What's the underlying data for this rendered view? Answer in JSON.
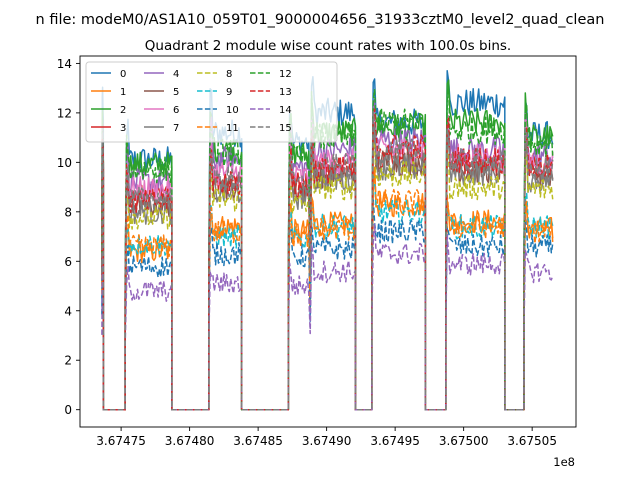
{
  "figure": {
    "suptitle": "n file: modeM0/AS1A10_059T01_9000004656_31933cztM0_level2_quad_clean",
    "title": "Quadrant 2 module wise count rates with 100.0s bins.",
    "offset_label": "1e8"
  },
  "chart_data": {
    "type": "line",
    "title": "Quadrant 2 module wise count rates with 100.0s bins.",
    "xlabel": "",
    "ylabel": "",
    "x_ticks": [
      "3.67475",
      "3.67480",
      "3.67485",
      "3.67490",
      "3.67495",
      "3.67500",
      "3.67505"
    ],
    "x_tick_values": [
      367475000,
      367480000,
      367485000,
      367490000,
      367495000,
      367500000,
      367505000
    ],
    "y_ticks": [
      "0",
      "2",
      "4",
      "6",
      "8",
      "10",
      "12",
      "14"
    ],
    "y_tick_values": [
      0,
      2,
      4,
      6,
      8,
      10,
      12,
      14
    ],
    "xlim": [
      367472000,
      367508200
    ],
    "ylim": [
      -0.7,
      14.3
    ],
    "x_offset_text": "1e8",
    "grid": false,
    "legend_position": "top-left",
    "legend_columns": 5,
    "segments": [
      {
        "x_start": 367473600,
        "x_end": 367473700,
        "state": "on"
      },
      {
        "x_start": 367473700,
        "x_end": 367475300,
        "state": "zero"
      },
      {
        "x_start": 367475300,
        "x_end": 367478700,
        "state": "on"
      },
      {
        "x_start": 367478700,
        "x_end": 367481400,
        "state": "zero"
      },
      {
        "x_start": 367481400,
        "x_end": 367483800,
        "state": "on"
      },
      {
        "x_start": 367483800,
        "x_end": 367487200,
        "state": "zero"
      },
      {
        "x_start": 367487200,
        "x_end": 367488700,
        "state": "on"
      },
      {
        "x_start": 367488800,
        "x_end": 367492100,
        "state": "on"
      },
      {
        "x_start": 367492100,
        "x_end": 367492200,
        "state": "zero"
      },
      {
        "x_start": 367492200,
        "x_end": 367493300,
        "state": "zero"
      },
      {
        "x_start": 367493300,
        "x_end": 367497200,
        "state": "on"
      },
      {
        "x_start": 367497200,
        "x_end": 367498700,
        "state": "zero"
      },
      {
        "x_start": 367498700,
        "x_end": 367503000,
        "state": "on"
      },
      {
        "x_start": 367503000,
        "x_end": 367504400,
        "state": "zero"
      },
      {
        "x_start": 367504400,
        "x_end": 367506500,
        "state": "on"
      }
    ],
    "series": [
      {
        "name": "0",
        "color": "#1f77b4",
        "dash": "solid",
        "plateau": [
          10.1,
          11.2,
          10.8,
          12.0,
          11.6,
          12.4,
          11.1
        ],
        "start_peak": 11.5
      },
      {
        "name": "1",
        "color": "#ff7f0e",
        "dash": "solid",
        "plateau": [
          6.4,
          7.4,
          7.2,
          7.5,
          8.3,
          7.6,
          7.3
        ],
        "start_peak": 9.5
      },
      {
        "name": "2",
        "color": "#2ca02c",
        "dash": "solid",
        "plateau": [
          9.9,
          10.5,
          10.3,
          11.2,
          11.4,
          11.6,
          11.0
        ],
        "start_peak": 10.5
      },
      {
        "name": "3",
        "color": "#d62728",
        "dash": "solid",
        "plateau": [
          8.6,
          9.3,
          9.1,
          9.8,
          10.3,
          10.0,
          9.9
        ],
        "start_peak": 10.0
      },
      {
        "name": "4",
        "color": "#9467bd",
        "dash": "solid",
        "plateau": [
          9.2,
          10.1,
          9.8,
          10.5,
          10.9,
          10.5,
          10.3
        ],
        "start_peak": 10.2
      },
      {
        "name": "5",
        "color": "#8c564b",
        "dash": "solid",
        "plateau": [
          8.3,
          9.0,
          8.8,
          9.5,
          10.0,
          9.7,
          9.5
        ],
        "start_peak": 9.8
      },
      {
        "name": "6",
        "color": "#e377c2",
        "dash": "solid",
        "plateau": [
          8.9,
          9.6,
          9.4,
          10.0,
          10.5,
          10.2,
          10.0
        ],
        "start_peak": 10.1
      },
      {
        "name": "7",
        "color": "#7f7f7f",
        "dash": "solid",
        "plateau": [
          8.0,
          8.8,
          8.6,
          9.3,
          9.8,
          9.6,
          9.3
        ],
        "start_peak": 9.6
      },
      {
        "name": "8",
        "color": "#bcbd22",
        "dash": "dashed",
        "plateau": [
          7.8,
          8.5,
          8.3,
          9.0,
          9.5,
          9.0,
          8.9
        ],
        "start_peak": 9.2
      },
      {
        "name": "9",
        "color": "#17becf",
        "dash": "dashed",
        "plateau": [
          6.7,
          7.0,
          6.9,
          7.4,
          8.0,
          7.4,
          7.4
        ],
        "start_peak": 8.0
      },
      {
        "name": "10",
        "color": "#1f77b4",
        "dash": "dashed",
        "plateau": [
          5.8,
          6.3,
          6.2,
          6.5,
          7.2,
          6.6,
          6.6
        ],
        "start_peak": 7.0
      },
      {
        "name": "11",
        "color": "#ff7f0e",
        "dash": "dashed",
        "plateau": [
          6.6,
          7.2,
          7.0,
          7.3,
          8.4,
          7.4,
          7.2
        ],
        "start_peak": 8.5
      },
      {
        "name": "12",
        "color": "#2ca02c",
        "dash": "dashed",
        "plateau": [
          9.7,
          10.4,
          10.2,
          11.0,
          11.6,
          11.3,
          10.8
        ],
        "start_peak": 10.3
      },
      {
        "name": "13",
        "color": "#d62728",
        "dash": "dashed",
        "plateau": [
          8.4,
          9.2,
          9.0,
          9.7,
          10.6,
          10.1,
          9.8
        ],
        "start_peak": 9.9
      },
      {
        "name": "14",
        "color": "#9467bd",
        "dash": "dashed",
        "plateau": [
          4.8,
          5.1,
          5.0,
          5.6,
          6.3,
          5.9,
          5.6
        ],
        "start_peak": 5.5
      },
      {
        "name": "15",
        "color": "#7f7f7f",
        "dash": "dashed",
        "plateau": [
          8.5,
          9.3,
          9.1,
          9.8,
          10.4,
          10.0,
          9.7
        ],
        "start_peak": 10.0
      }
    ]
  }
}
